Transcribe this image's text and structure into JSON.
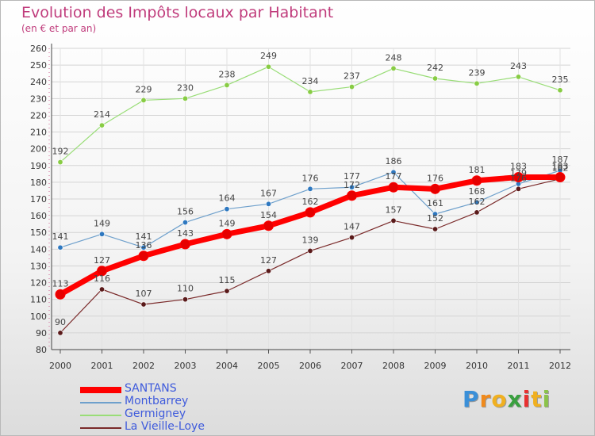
{
  "chart_data": {
    "type": "line",
    "title": "Evolution des Impôts locaux par Habitant",
    "subtitle": "(en € et par an)",
    "x": [
      "2000",
      "2001",
      "2002",
      "2003",
      "2004",
      "2005",
      "2006",
      "2007",
      "2008",
      "2009",
      "2010",
      "2011",
      "2012"
    ],
    "ylim": [
      80,
      260
    ],
    "yticks": [
      80,
      90,
      100,
      110,
      120,
      130,
      140,
      150,
      160,
      170,
      180,
      190,
      200,
      210,
      220,
      230,
      240,
      250,
      260
    ],
    "grid": true,
    "legend_position": "bottom-left",
    "series": [
      {
        "name": "SANTANS",
        "color": "#ff0000",
        "marker": "#e60000",
        "width": 7,
        "values": [
          113,
          127,
          136,
          143,
          149,
          154,
          162,
          172,
          177,
          176,
          181,
          183,
          183
        ]
      },
      {
        "name": "Montbarrey",
        "color": "#6ea0cc",
        "marker": "#2e78c0",
        "width": 1.2,
        "values": [
          141,
          149,
          141,
          156,
          164,
          167,
          176,
          177,
          186,
          161,
          168,
          179,
          187
        ]
      },
      {
        "name": "Germigney",
        "color": "#99dd77",
        "marker": "#88cc44",
        "width": 1.2,
        "values": [
          192,
          214,
          229,
          230,
          238,
          249,
          234,
          237,
          248,
          242,
          239,
          243,
          235
        ]
      },
      {
        "name": "La Vieille-Loye",
        "color": "#7a2a2a",
        "marker": "#5a1a1a",
        "width": 1.2,
        "values": [
          90,
          116,
          107,
          110,
          115,
          127,
          139,
          147,
          157,
          152,
          162,
          176,
          182
        ]
      }
    ],
    "value_labels": [
      [
        113,
        127,
        136,
        143,
        149,
        154,
        162,
        172,
        177,
        176,
        181,
        183,
        183
      ],
      [
        141,
        149,
        141,
        156,
        164,
        167,
        176,
        177,
        186,
        161,
        168,
        179,
        187
      ],
      [
        192,
        214,
        229,
        230,
        238,
        249,
        234,
        237,
        248,
        242,
        239,
        243,
        235
      ],
      [
        90,
        116,
        107,
        110,
        115,
        127,
        139,
        147,
        157,
        152,
        162,
        176,
        182
      ]
    ]
  },
  "legend": {
    "items": [
      "SANTANS",
      "Montbarrey",
      "Germigney",
      "La Vieille-Loye"
    ]
  },
  "logo": {
    "letters": [
      "P",
      "r",
      "o",
      "x",
      "i",
      "t",
      "i"
    ],
    "colors": [
      "#3a8fd8",
      "#f08a1c",
      "#f0b020",
      "#3aa040",
      "#e83030",
      "#f0b020",
      "#8bc34a"
    ]
  }
}
